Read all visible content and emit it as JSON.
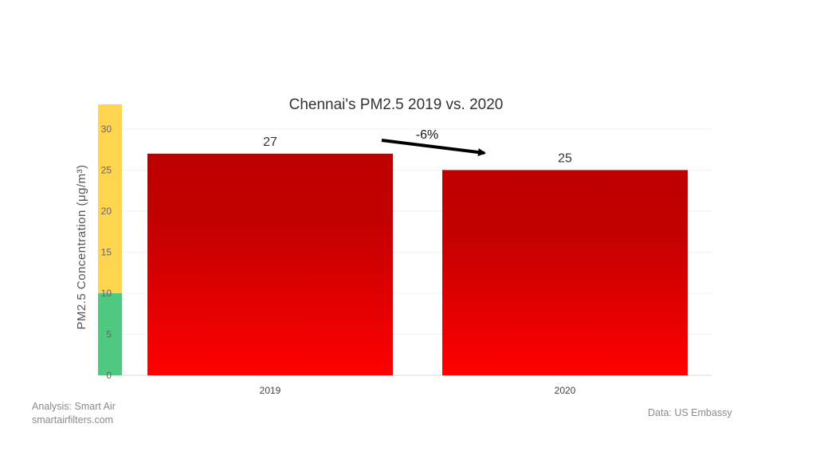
{
  "chart_data": {
    "type": "bar",
    "title": "Chennai's PM2.5 2019 vs. 2020",
    "ylabel": "PM2.5 Concentration (μg/m³)",
    "xlabel": "",
    "categories": [
      "2019",
      "2020"
    ],
    "values": [
      27,
      25
    ],
    "value_labels": [
      "27",
      "25"
    ],
    "ylim": [
      0,
      33
    ],
    "yticks": [
      0,
      5,
      10,
      15,
      20,
      25,
      30
    ],
    "grid": true,
    "change_label": "-6%",
    "bar_gradient": {
      "top": "#bf0000",
      "bottom": "#ff0000"
    },
    "aqi_band": [
      {
        "from": 0,
        "to": 10,
        "color": "#4fc97f"
      },
      {
        "from": 10,
        "to": 33,
        "color": "#ffd54f"
      }
    ]
  },
  "footer": {
    "analysis": "Analysis:  Smart Air",
    "website": "smartairfilters.com",
    "source": "Data:  US Embassy"
  }
}
